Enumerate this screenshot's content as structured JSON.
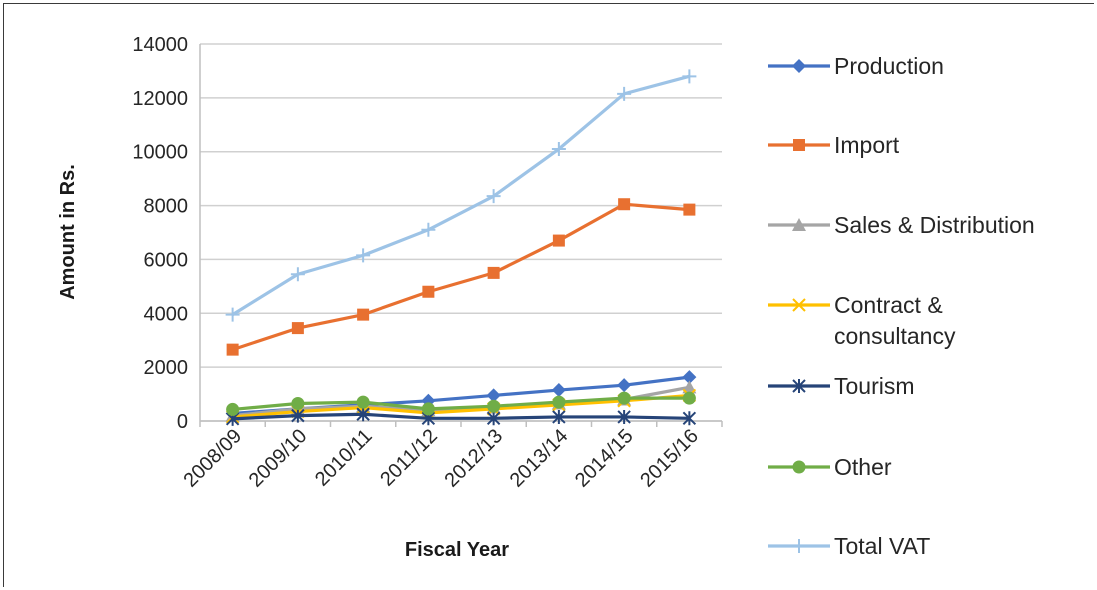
{
  "chart_data": {
    "type": "line",
    "title": "",
    "xlabel": "Fiscal Year",
    "ylabel": "Amount in Rs.",
    "ylim": [
      0,
      14000
    ],
    "yticks": [
      0,
      2000,
      4000,
      6000,
      8000,
      10000,
      12000,
      14000
    ],
    "grid": true,
    "legend_position": "right",
    "categories": [
      "2008/09",
      "2009/10",
      "2010/11",
      "2011/12",
      "2012/13",
      "2013/14",
      "2014/15",
      "2015/16"
    ],
    "series": [
      {
        "name": "Production",
        "color": "#4472C4",
        "marker": "diamond",
        "values": [
          280,
          450,
          600,
          750,
          950,
          1150,
          1330,
          1630
        ]
      },
      {
        "name": "Import",
        "color": "#E87030",
        "marker": "square",
        "values": [
          2650,
          3450,
          3950,
          4800,
          5500,
          6700,
          8050,
          7850
        ]
      },
      {
        "name": "Sales & Distribution",
        "color": "#A5A5A5",
        "marker": "triangle",
        "values": [
          200,
          450,
          550,
          400,
          500,
          650,
          800,
          1250
        ]
      },
      {
        "name": "Contract & consultancy",
        "color": "#FFC000",
        "marker": "x",
        "values": [
          150,
          350,
          500,
          300,
          450,
          600,
          750,
          950
        ]
      },
      {
        "name": "Tourism",
        "color": "#264478",
        "marker": "star",
        "values": [
          80,
          200,
          250,
          100,
          100,
          150,
          150,
          100
        ]
      },
      {
        "name": "Other",
        "color": "#70AD47",
        "marker": "circle",
        "values": [
          430,
          650,
          700,
          450,
          550,
          700,
          850,
          850
        ]
      },
      {
        "name": "Total VAT",
        "color": "#9DC3E6",
        "marker": "plus",
        "values": [
          3950,
          5450,
          6150,
          7100,
          8350,
          10100,
          12150,
          12800
        ]
      }
    ]
  }
}
